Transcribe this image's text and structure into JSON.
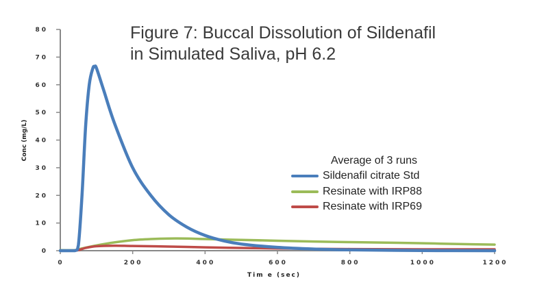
{
  "chart_data": {
    "type": "line",
    "title": [
      "Figure 7: Buccal Dissolution of Sildenafil",
      "in Simulated Saliva, pH 6.2"
    ],
    "xlabel": "Tim e (sec)",
    "ylabel": "Conc (mg/L)",
    "xlim": [
      0,
      1200
    ],
    "ylim": [
      0,
      80
    ],
    "xticks": [
      0,
      200,
      400,
      600,
      800,
      1000,
      1200
    ],
    "yticks": [
      0,
      10,
      20,
      30,
      40,
      50,
      60,
      70,
      80
    ],
    "grid": false,
    "legend_title": "Average of 3 runs",
    "legend_placement": "center-right",
    "series": [
      {
        "name": "Sildenafil citrate Std",
        "color": "#4a7ebb",
        "x": [
          0,
          40,
          50,
          60,
          70,
          80,
          90,
          95,
          100,
          120,
          150,
          200,
          250,
          300,
          350,
          400,
          450,
          500,
          600,
          700,
          800,
          1000,
          1200
        ],
        "y": [
          0,
          0,
          2,
          20,
          45,
          60,
          66,
          66.5,
          66,
          58,
          46,
          30,
          20,
          13,
          8.5,
          5.5,
          3.6,
          2.4,
          1.2,
          0.6,
          0.3,
          0.05,
          0
        ]
      },
      {
        "name": "Resinate with IRP88",
        "color": "#9bbb59",
        "x": [
          0,
          40,
          60,
          100,
          150,
          200,
          250,
          300,
          350,
          400,
          500,
          600,
          700,
          800,
          900,
          1000,
          1100,
          1200
        ],
        "y": [
          0.2,
          0.2,
          0.8,
          1.9,
          3.0,
          3.8,
          4.2,
          4.4,
          4.4,
          4.2,
          3.9,
          3.6,
          3.3,
          3.1,
          2.9,
          2.7,
          2.4,
          2.2
        ]
      },
      {
        "name": "Resinate with IRP69",
        "color": "#be4b48",
        "x": [
          0,
          40,
          55,
          70,
          100,
          150,
          200,
          300,
          400,
          500,
          600,
          800,
          1000,
          1200
        ],
        "y": [
          0,
          0,
          0.4,
          1.0,
          1.6,
          1.8,
          1.7,
          1.5,
          1.2,
          1.0,
          0.8,
          0.6,
          0.5,
          0.5
        ]
      }
    ]
  }
}
